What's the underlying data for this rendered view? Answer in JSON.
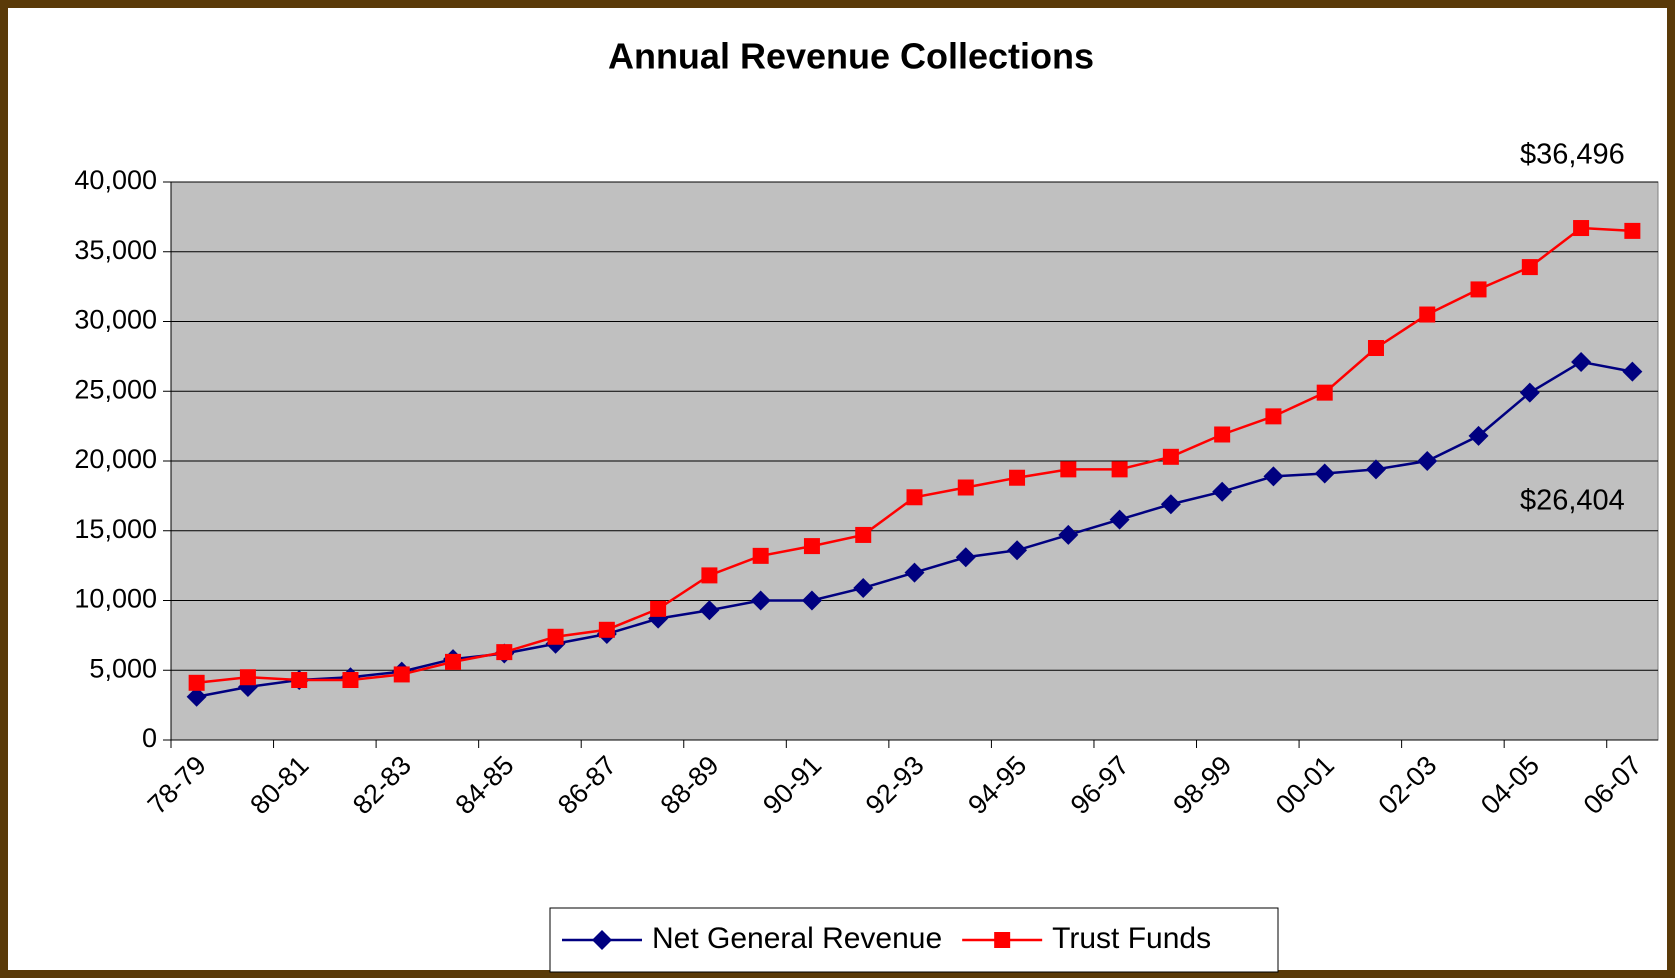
{
  "chart_data": {
    "type": "line",
    "title": "Annual Revenue Collections",
    "categories": [
      "78-79",
      null,
      "80-81",
      null,
      "82-83",
      null,
      "84-85",
      null,
      "86-87",
      null,
      "88-89",
      null,
      "90-91",
      null,
      "92-93",
      null,
      "94-95",
      null,
      "96-97",
      null,
      "98-99",
      null,
      "00-01",
      null,
      "02-03",
      null,
      "04-05",
      null,
      "06-07"
    ],
    "series": [
      {
        "name": "Net General Revenue",
        "color": "#000080",
        "marker": "diamond",
        "values": [
          3100,
          3800,
          4300,
          4500,
          4900,
          5800,
          6200,
          6900,
          7600,
          8700,
          9300,
          10000,
          10000,
          10900,
          12000,
          13100,
          13600,
          14700,
          15800,
          16900,
          17800,
          18900,
          19100,
          19400,
          20000,
          21800,
          24900,
          27100,
          26404
        ],
        "value_labels": [
          null,
          null,
          null,
          null,
          null,
          null,
          null,
          null,
          null,
          null,
          null,
          null,
          null,
          null,
          null,
          null,
          null,
          null,
          null,
          null,
          null,
          null,
          null,
          null,
          null,
          null,
          null,
          null,
          "$26,404"
        ]
      },
      {
        "name": "Trust Funds",
        "color": "#ff0000",
        "marker": "square",
        "values": [
          4100,
          4500,
          4300,
          4300,
          4700,
          5600,
          6300,
          7400,
          7900,
          9400,
          11800,
          13200,
          13900,
          14700,
          17400,
          18100,
          18800,
          19400,
          19400,
          20300,
          21900,
          23200,
          24900,
          28100,
          30500,
          32300,
          33900,
          36700,
          36496
        ],
        "value_labels": [
          null,
          null,
          null,
          null,
          null,
          null,
          null,
          null,
          null,
          null,
          null,
          null,
          null,
          null,
          null,
          null,
          null,
          null,
          null,
          null,
          null,
          null,
          null,
          null,
          null,
          null,
          null,
          null,
          "$36,496"
        ]
      }
    ],
    "ylim": [
      0,
      40000
    ],
    "yticks": [
      0,
      {
        "value": 5000,
        "label": "5,000"
      },
      {
        "value": 10000,
        "label": "10,000"
      },
      {
        "value": 15000,
        "label": "15,000"
      },
      {
        "value": 20000,
        "label": "20,000"
      },
      {
        "value": 25000,
        "label": "25,000"
      },
      {
        "value": 30000,
        "label": "30,000"
      },
      {
        "value": 35000,
        "label": "35,000"
      },
      {
        "value": 40000,
        "label": "40,000"
      }
    ],
    "grid": true,
    "legend": "bottom"
  }
}
